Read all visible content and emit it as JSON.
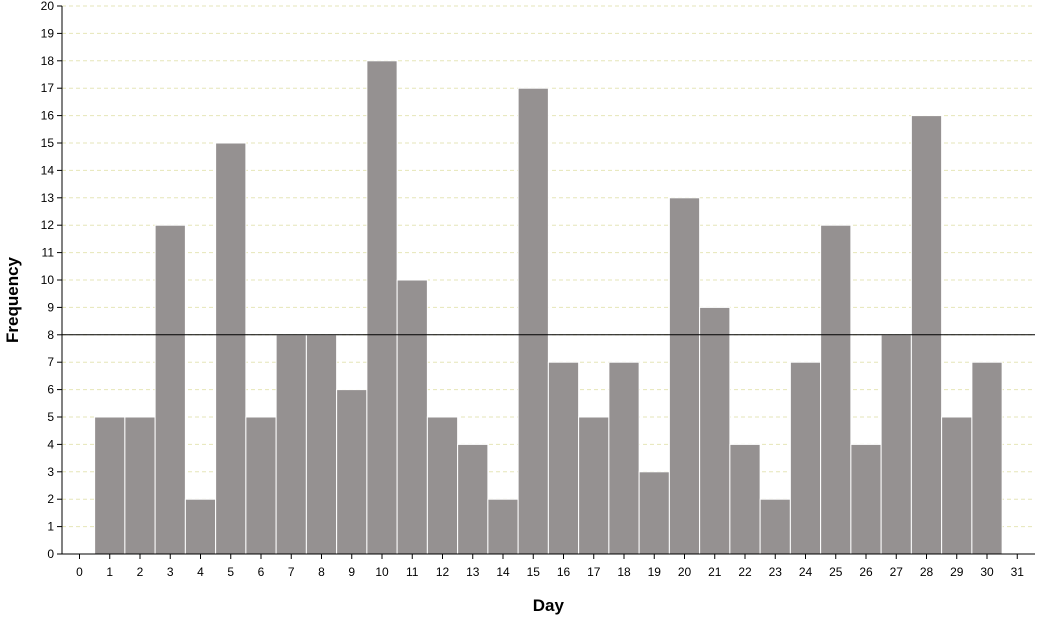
{
  "chart_data": {
    "type": "bar",
    "xlabel": "Day",
    "ylabel": "Frequency",
    "xlim": [
      0,
      31
    ],
    "ylim": [
      0,
      20
    ],
    "x_ticks": [
      "0",
      "1",
      "2",
      "3",
      "4",
      "5",
      "6",
      "7",
      "8",
      "9",
      "10",
      "11",
      "12",
      "13",
      "14",
      "15",
      "16",
      "17",
      "18",
      "19",
      "20",
      "21",
      "22",
      "23",
      "24",
      "25",
      "26",
      "27",
      "28",
      "29",
      "30",
      "31"
    ],
    "y_ticks": [
      "0",
      "1",
      "2",
      "3",
      "4",
      "5",
      "6",
      "7",
      "8",
      "9",
      "10",
      "11",
      "12",
      "13",
      "14",
      "15",
      "16",
      "17",
      "18",
      "19",
      "20"
    ],
    "categories": [
      "1",
      "2",
      "3",
      "4",
      "5",
      "6",
      "7",
      "8",
      "9",
      "10",
      "11",
      "12",
      "13",
      "14",
      "15",
      "16",
      "17",
      "18",
      "19",
      "20",
      "21",
      "22",
      "23",
      "24",
      "25",
      "26",
      "27",
      "28",
      "29",
      "30"
    ],
    "values": [
      5,
      5,
      12,
      2,
      15,
      5,
      8,
      8,
      6,
      18,
      10,
      5,
      4,
      2,
      17,
      7,
      5,
      7,
      3,
      13,
      9,
      4,
      2,
      7,
      12,
      4,
      8,
      16,
      5,
      7
    ],
    "reference_line": 8,
    "grid": true,
    "legend": "none",
    "colors": {
      "bar": "#959191",
      "bar_edge": "#ffffff",
      "grid": "#e6e6b8",
      "axis": "#000000"
    }
  }
}
